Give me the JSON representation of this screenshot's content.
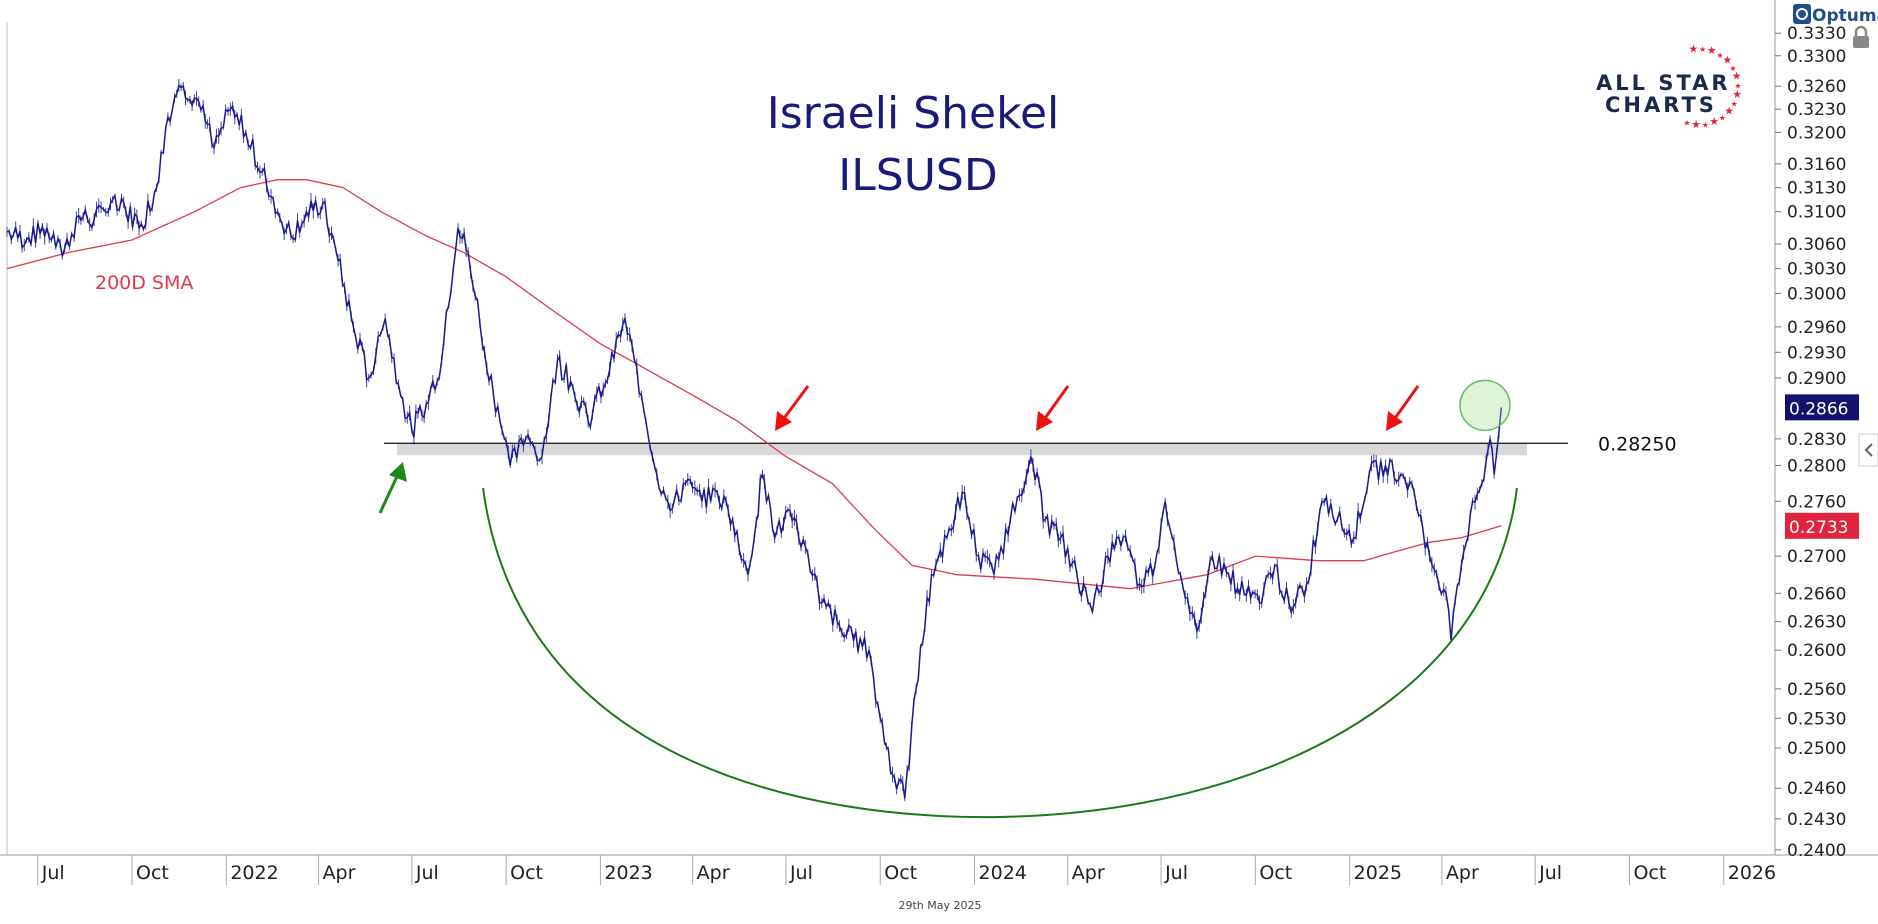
{
  "brand": {
    "optuma": "Optuma",
    "logo_line1": "ALL STAR",
    "logo_line2": "CHARTS"
  },
  "footer_date": "29th May 2025",
  "chart_data": {
    "type": "line",
    "title": "Israeli Shekel",
    "subtitle": "ILSUSD",
    "xlabel": "",
    "ylabel": "",
    "x_range": [
      "2021-06-01",
      "2026-02-20"
    ],
    "ylim": [
      0.2395,
      0.3345
    ],
    "y_scale": "log",
    "grid": false,
    "y_ticks": [
      "0.3330",
      "0.3300",
      "0.3260",
      "0.3230",
      "0.3200",
      "0.3160",
      "0.3130",
      "0.3100",
      "0.3060",
      "0.3030",
      "0.3000",
      "0.2960",
      "0.2930",
      "0.2900",
      "0.2866",
      "0.2830",
      "0.2800",
      "0.2760",
      "0.2733",
      "0.2700",
      "0.2660",
      "0.2630",
      "0.2600",
      "0.2560",
      "0.2530",
      "0.2500",
      "0.2460",
      "0.2430",
      "0.2400"
    ],
    "x_ticks": [
      {
        "label": "Jul",
        "date": "2021-07-01"
      },
      {
        "label": "Oct",
        "date": "2021-10-01"
      },
      {
        "label": "2022",
        "date": "2022-01-01"
      },
      {
        "label": "Apr",
        "date": "2022-04-01"
      },
      {
        "label": "Jul",
        "date": "2022-07-01"
      },
      {
        "label": "Oct",
        "date": "2022-10-01"
      },
      {
        "label": "2023",
        "date": "2023-01-01"
      },
      {
        "label": "Apr",
        "date": "2023-04-01"
      },
      {
        "label": "Jul",
        "date": "2023-07-01"
      },
      {
        "label": "Oct",
        "date": "2023-10-01"
      },
      {
        "label": "2024",
        "date": "2024-01-01"
      },
      {
        "label": "Apr",
        "date": "2024-04-01"
      },
      {
        "label": "Jul",
        "date": "2024-07-01"
      },
      {
        "label": "Oct",
        "date": "2024-10-01"
      },
      {
        "label": "2025",
        "date": "2025-01-01"
      },
      {
        "label": "Apr",
        "date": "2025-04-01"
      },
      {
        "label": "Jul",
        "date": "2025-07-01"
      },
      {
        "label": "Oct",
        "date": "2025-10-01"
      },
      {
        "label": "2026",
        "date": "2026-01-01"
      }
    ],
    "series": [
      {
        "name": "",
        "color": "#1a1a8c",
        "points": [
          [
            "2021-06-01",
            0.3075
          ],
          [
            "2021-06-20",
            0.3065
          ],
          [
            "2021-07-10",
            0.308
          ],
          [
            "2021-07-25",
            0.3045
          ],
          [
            "2021-08-10",
            0.3095
          ],
          [
            "2021-08-25",
            0.309
          ],
          [
            "2021-09-10",
            0.311
          ],
          [
            "2021-09-25",
            0.31
          ],
          [
            "2021-10-10",
            0.3085
          ],
          [
            "2021-10-25",
            0.313
          ],
          [
            "2021-11-05",
            0.322
          ],
          [
            "2021-11-20",
            0.326
          ],
          [
            "2021-12-05",
            0.324
          ],
          [
            "2021-12-20",
            0.318
          ],
          [
            "2022-01-05",
            0.323
          ],
          [
            "2022-01-20",
            0.32
          ],
          [
            "2022-02-05",
            0.315
          ],
          [
            "2022-02-20",
            0.31
          ],
          [
            "2022-03-05",
            0.307
          ],
          [
            "2022-03-20",
            0.31
          ],
          [
            "2022-04-05",
            0.311
          ],
          [
            "2022-04-20",
            0.304
          ],
          [
            "2022-05-05",
            0.296
          ],
          [
            "2022-05-20",
            0.29
          ],
          [
            "2022-06-05",
            0.297
          ],
          [
            "2022-06-20",
            0.288
          ],
          [
            "2022-07-01",
            0.284
          ],
          [
            "2022-07-15",
            0.287
          ],
          [
            "2022-07-30",
            0.292
          ],
          [
            "2022-08-15",
            0.308
          ],
          [
            "2022-08-25",
            0.305
          ],
          [
            "2022-09-10",
            0.293
          ],
          [
            "2022-09-25",
            0.285
          ],
          [
            "2022-10-05",
            0.28
          ],
          [
            "2022-10-20",
            0.283
          ],
          [
            "2022-11-05",
            0.281
          ],
          [
            "2022-11-20",
            0.292
          ],
          [
            "2022-12-05",
            0.289
          ],
          [
            "2022-12-20",
            0.285
          ],
          [
            "2023-01-10",
            0.291
          ],
          [
            "2023-01-25",
            0.297
          ],
          [
            "2023-02-10",
            0.288
          ],
          [
            "2023-02-25",
            0.279
          ],
          [
            "2023-03-10",
            0.275
          ],
          [
            "2023-03-25",
            0.278
          ],
          [
            "2023-04-10",
            0.276
          ],
          [
            "2023-04-25",
            0.277
          ],
          [
            "2023-05-10",
            0.274
          ],
          [
            "2023-05-25",
            0.268
          ],
          [
            "2023-06-08",
            0.279
          ],
          [
            "2023-06-20",
            0.272
          ],
          [
            "2023-07-05",
            0.275
          ],
          [
            "2023-07-20",
            0.271
          ],
          [
            "2023-08-05",
            0.265
          ],
          [
            "2023-08-20",
            0.263
          ],
          [
            "2023-09-05",
            0.261
          ],
          [
            "2023-09-20",
            0.26
          ],
          [
            "2023-10-01",
            0.253
          ],
          [
            "2023-10-15",
            0.247
          ],
          [
            "2023-10-25",
            0.245
          ],
          [
            "2023-11-05",
            0.256
          ],
          [
            "2023-11-20",
            0.268
          ],
          [
            "2023-12-05",
            0.272
          ],
          [
            "2023-12-20",
            0.277
          ],
          [
            "2024-01-05",
            0.27
          ],
          [
            "2024-01-20",
            0.268
          ],
          [
            "2024-02-05",
            0.274
          ],
          [
            "2024-02-25",
            0.281
          ],
          [
            "2024-03-10",
            0.274
          ],
          [
            "2024-03-25",
            0.272
          ],
          [
            "2024-04-10",
            0.268
          ],
          [
            "2024-04-25",
            0.264
          ],
          [
            "2024-05-10",
            0.27
          ],
          [
            "2024-05-25",
            0.272
          ],
          [
            "2024-06-10",
            0.267
          ],
          [
            "2024-06-25",
            0.269
          ],
          [
            "2024-07-05",
            0.276
          ],
          [
            "2024-07-20",
            0.268
          ],
          [
            "2024-08-05",
            0.262
          ],
          [
            "2024-08-20",
            0.27
          ],
          [
            "2024-09-05",
            0.268
          ],
          [
            "2024-09-20",
            0.266
          ],
          [
            "2024-10-05",
            0.265
          ],
          [
            "2024-10-20",
            0.269
          ],
          [
            "2024-11-05",
            0.264
          ],
          [
            "2024-11-20",
            0.267
          ],
          [
            "2024-12-05",
            0.276
          ],
          [
            "2024-12-20",
            0.274
          ],
          [
            "2025-01-05",
            0.272
          ],
          [
            "2025-01-20",
            0.279
          ],
          [
            "2025-02-05",
            0.28
          ],
          [
            "2025-02-20",
            0.279
          ],
          [
            "2025-03-05",
            0.277
          ],
          [
            "2025-03-20",
            0.27
          ],
          [
            "2025-04-05",
            0.266
          ],
          [
            "2025-04-10",
            0.261
          ],
          [
            "2025-04-20",
            0.269
          ],
          [
            "2025-05-01",
            0.276
          ],
          [
            "2025-05-10",
            0.278
          ],
          [
            "2025-05-18",
            0.283
          ],
          [
            "2025-05-22",
            0.279
          ],
          [
            "2025-05-29",
            0.2866
          ]
        ]
      },
      {
        "name": "200D SMA",
        "color": "#e03a4e",
        "points": [
          [
            "2021-06-01",
            0.303
          ],
          [
            "2021-08-01",
            0.305
          ],
          [
            "2021-10-01",
            0.3065
          ],
          [
            "2021-12-01",
            0.31
          ],
          [
            "2022-01-15",
            0.313
          ],
          [
            "2022-02-20",
            0.314
          ],
          [
            "2022-03-20",
            0.314
          ],
          [
            "2022-04-25",
            0.313
          ],
          [
            "2022-06-01",
            0.31
          ],
          [
            "2022-07-15",
            0.307
          ],
          [
            "2022-08-20",
            0.305
          ],
          [
            "2022-10-01",
            0.302
          ],
          [
            "2022-11-15",
            0.298
          ],
          [
            "2023-01-01",
            0.294
          ],
          [
            "2023-02-15",
            0.291
          ],
          [
            "2023-04-01",
            0.288
          ],
          [
            "2023-05-15",
            0.285
          ],
          [
            "2023-07-01",
            0.281
          ],
          [
            "2023-08-15",
            0.278
          ],
          [
            "2023-09-25",
            0.273
          ],
          [
            "2023-11-01",
            0.269
          ],
          [
            "2023-12-15",
            0.268
          ],
          [
            "2024-03-01",
            0.2675
          ],
          [
            "2024-06-01",
            0.2665
          ],
          [
            "2024-08-15",
            0.268
          ],
          [
            "2024-10-01",
            0.27
          ],
          [
            "2024-12-01",
            0.2695
          ],
          [
            "2025-01-15",
            0.2695
          ],
          [
            "2025-02-15",
            0.2705
          ],
          [
            "2025-03-20",
            0.2715
          ],
          [
            "2025-04-20",
            0.272
          ],
          [
            "2025-05-29",
            0.2733
          ]
        ]
      }
    ],
    "price_labels": [
      {
        "value": 0.2866,
        "text": "0.2866",
        "color": "#12126e"
      },
      {
        "value": 0.2733,
        "text": "0.2733",
        "color": "#e0243e"
      }
    ],
    "annotations": {
      "sma_label": {
        "text": "200D SMA",
        "color": "#e03a4e"
      },
      "resistance": {
        "value": 0.2825,
        "text": "0.28250",
        "color": "#111111",
        "zone_color": "#d8d8d8"
      },
      "up_arrow_color": "#1a8a1a",
      "down_arrow_color": "#ee1111",
      "arc_color": "#1a7a1a",
      "circle_color": "#7ec87e"
    }
  }
}
